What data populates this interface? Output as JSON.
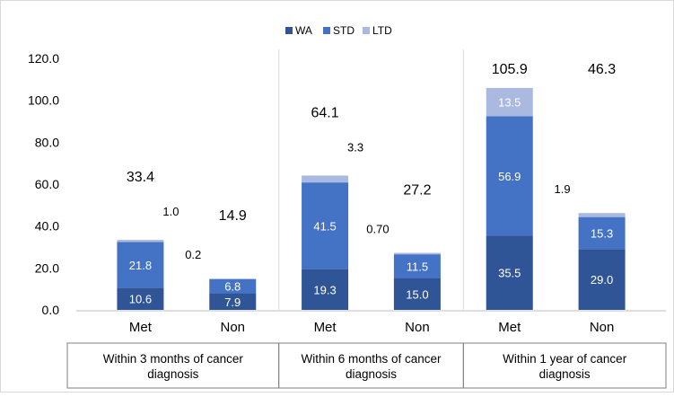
{
  "chart_data": {
    "type": "bar",
    "stacked": true,
    "title": "",
    "xlabel": "",
    "ylabel": "",
    "ylim": [
      0,
      120
    ],
    "yticks": [
      "0.0",
      "20.0",
      "40.0",
      "60.0",
      "80.0",
      "100.0",
      "120.0"
    ],
    "legend_position": "top",
    "colors": {
      "WA": "#2f5597",
      "STD": "#4472c4",
      "LTD": "#a9b9e0",
      "axis": "#bfbfbf",
      "divider": "#d9d9d9",
      "text": "#000000"
    },
    "groups": [
      {
        "label": "Within 3 months of cancer diagnosis",
        "label_lines": [
          "Within 3 months of cancer",
          "diagnosis"
        ]
      },
      {
        "label": "Within 6 months of cancer diagnosis",
        "label_lines": [
          "Within 6 months of cancer",
          "diagnosis"
        ]
      },
      {
        "label": "Within 1 year of cancer diagnosis",
        "label_lines": [
          "Within 1 year of cancer",
          "diagnosis"
        ]
      }
    ],
    "series": [
      {
        "name": "WA",
        "values": [
          10.6,
          7.9,
          19.3,
          15.0,
          35.5,
          29.0
        ],
        "labels": [
          "10.6",
          "7.9",
          "19.3",
          "15.0",
          "35.5",
          "29.0"
        ]
      },
      {
        "name": "STD",
        "values": [
          21.8,
          6.8,
          41.5,
          11.5,
          56.9,
          15.3
        ],
        "labels": [
          "21.8",
          "6.8",
          "41.5",
          "11.5",
          "56.9",
          "15.3"
        ]
      },
      {
        "name": "LTD",
        "values": [
          1.0,
          0.2,
          3.3,
          0.7,
          13.5,
          1.9
        ],
        "labels": [
          "1.0",
          "0.2",
          "3.3",
          "0.70",
          "13.5",
          "1.9"
        ]
      }
    ],
    "bars": [
      {
        "category": "Met",
        "group": 0,
        "total_label": "33.4"
      },
      {
        "category": "Non",
        "group": 0,
        "total_label": "14.9"
      },
      {
        "category": "Met",
        "group": 1,
        "total_label": "64.1"
      },
      {
        "category": "Non",
        "group": 1,
        "total_label": "27.2"
      },
      {
        "category": "Met",
        "group": 2,
        "total_label": "105.9"
      },
      {
        "category": "Non",
        "group": 2,
        "total_label": "46.3"
      }
    ]
  }
}
